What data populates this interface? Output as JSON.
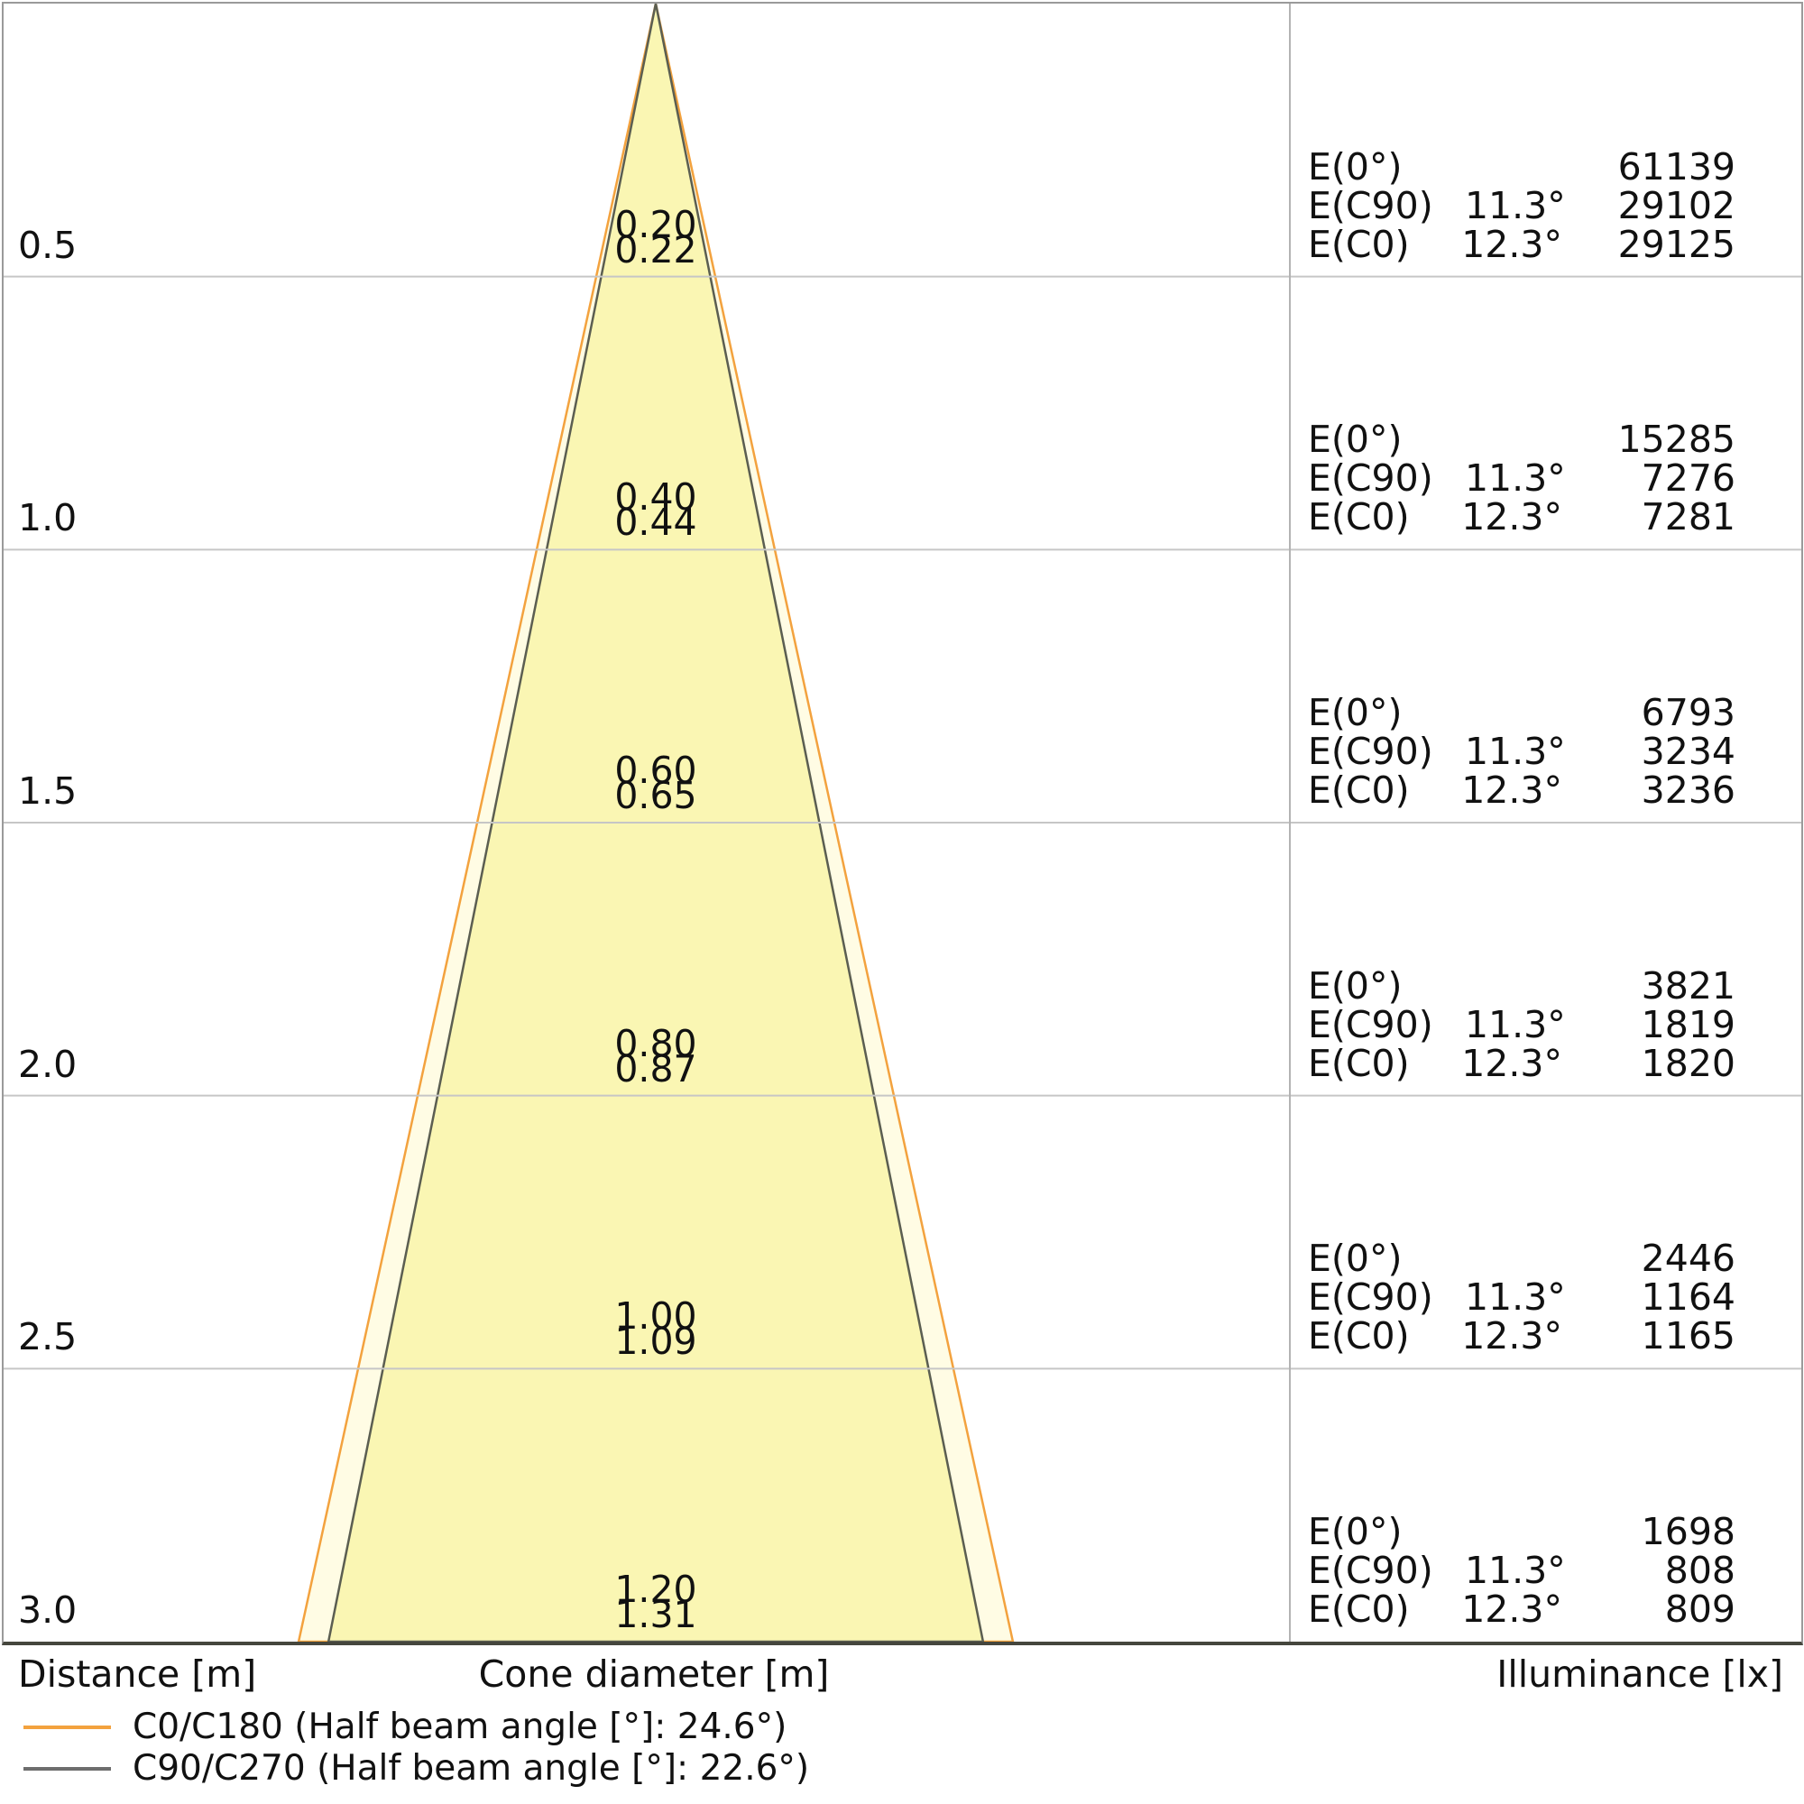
{
  "chart_data": {
    "type": "area",
    "subtype": "photometric-light-cone-diagram",
    "title": "",
    "x_axis": {
      "label": "Cone diameter [m]"
    },
    "y_axis": {
      "label": "Distance [m]",
      "range_m": [
        0,
        3.0
      ],
      "ticks": [
        "0.5",
        "1.0",
        "1.5",
        "2.0",
        "2.5",
        "3.0"
      ],
      "grid": true
    },
    "value_axis_label": "Illuminance [lx]",
    "geometry": {
      "half_beam_c0_deg": 12.3,
      "half_beam_c90_deg": 11.3,
      "max_distance_m": 3.0
    },
    "row_labels": {
      "e0": "E(0°)",
      "ec90": "E(C90)",
      "ec0": "E(C0)"
    },
    "angles": {
      "ec90": "11.3°",
      "ec0": "12.3°"
    },
    "rows": [
      {
        "distance": "0.5",
        "cone_c90": "0.20",
        "cone_c0": "0.22",
        "e0": "61139",
        "ec90": "29102",
        "ec0": "29125"
      },
      {
        "distance": "1.0",
        "cone_c90": "0.40",
        "cone_c0": "0.44",
        "e0": "15285",
        "ec90": "7276",
        "ec0": "7281"
      },
      {
        "distance": "1.5",
        "cone_c90": "0.60",
        "cone_c0": "0.65",
        "e0": "6793",
        "ec90": "3234",
        "ec0": "3236"
      },
      {
        "distance": "2.0",
        "cone_c90": "0.80",
        "cone_c0": "0.87",
        "e0": "3821",
        "ec90": "1819",
        "ec0": "1820"
      },
      {
        "distance": "2.5",
        "cone_c90": "1.00",
        "cone_c0": "1.09",
        "e0": "2446",
        "ec90": "1164",
        "ec0": "1165"
      },
      {
        "distance": "3.0",
        "cone_c90": "1.20",
        "cone_c0": "1.31",
        "e0": "1698",
        "ec90": "808",
        "ec0": "809"
      }
    ]
  },
  "footer": {
    "distance": "Distance [m]",
    "cone_diameter": "Cone diameter [m]",
    "illuminance": "Illuminance [lx]"
  },
  "legend": [
    {
      "label": "C0/C180 (Half beam angle [°]: 24.6°)",
      "color": "#f3a23e"
    },
    {
      "label": "C90/C270 (Half beam angle [°]: 22.6°)",
      "color": "#6d6d6d"
    }
  ],
  "colors": {
    "cone_fill_inner": "#faf6b3",
    "cone_fill_outer": "#fffce4",
    "cone_stroke_c0": "#f3a23e",
    "cone_stroke_c90": "#5b5e51",
    "grid": "#c6c6c6",
    "divider": "#b3b3b3",
    "border": "#9a9a9a",
    "bottom_border": "#45463d",
    "text": "#111111"
  }
}
